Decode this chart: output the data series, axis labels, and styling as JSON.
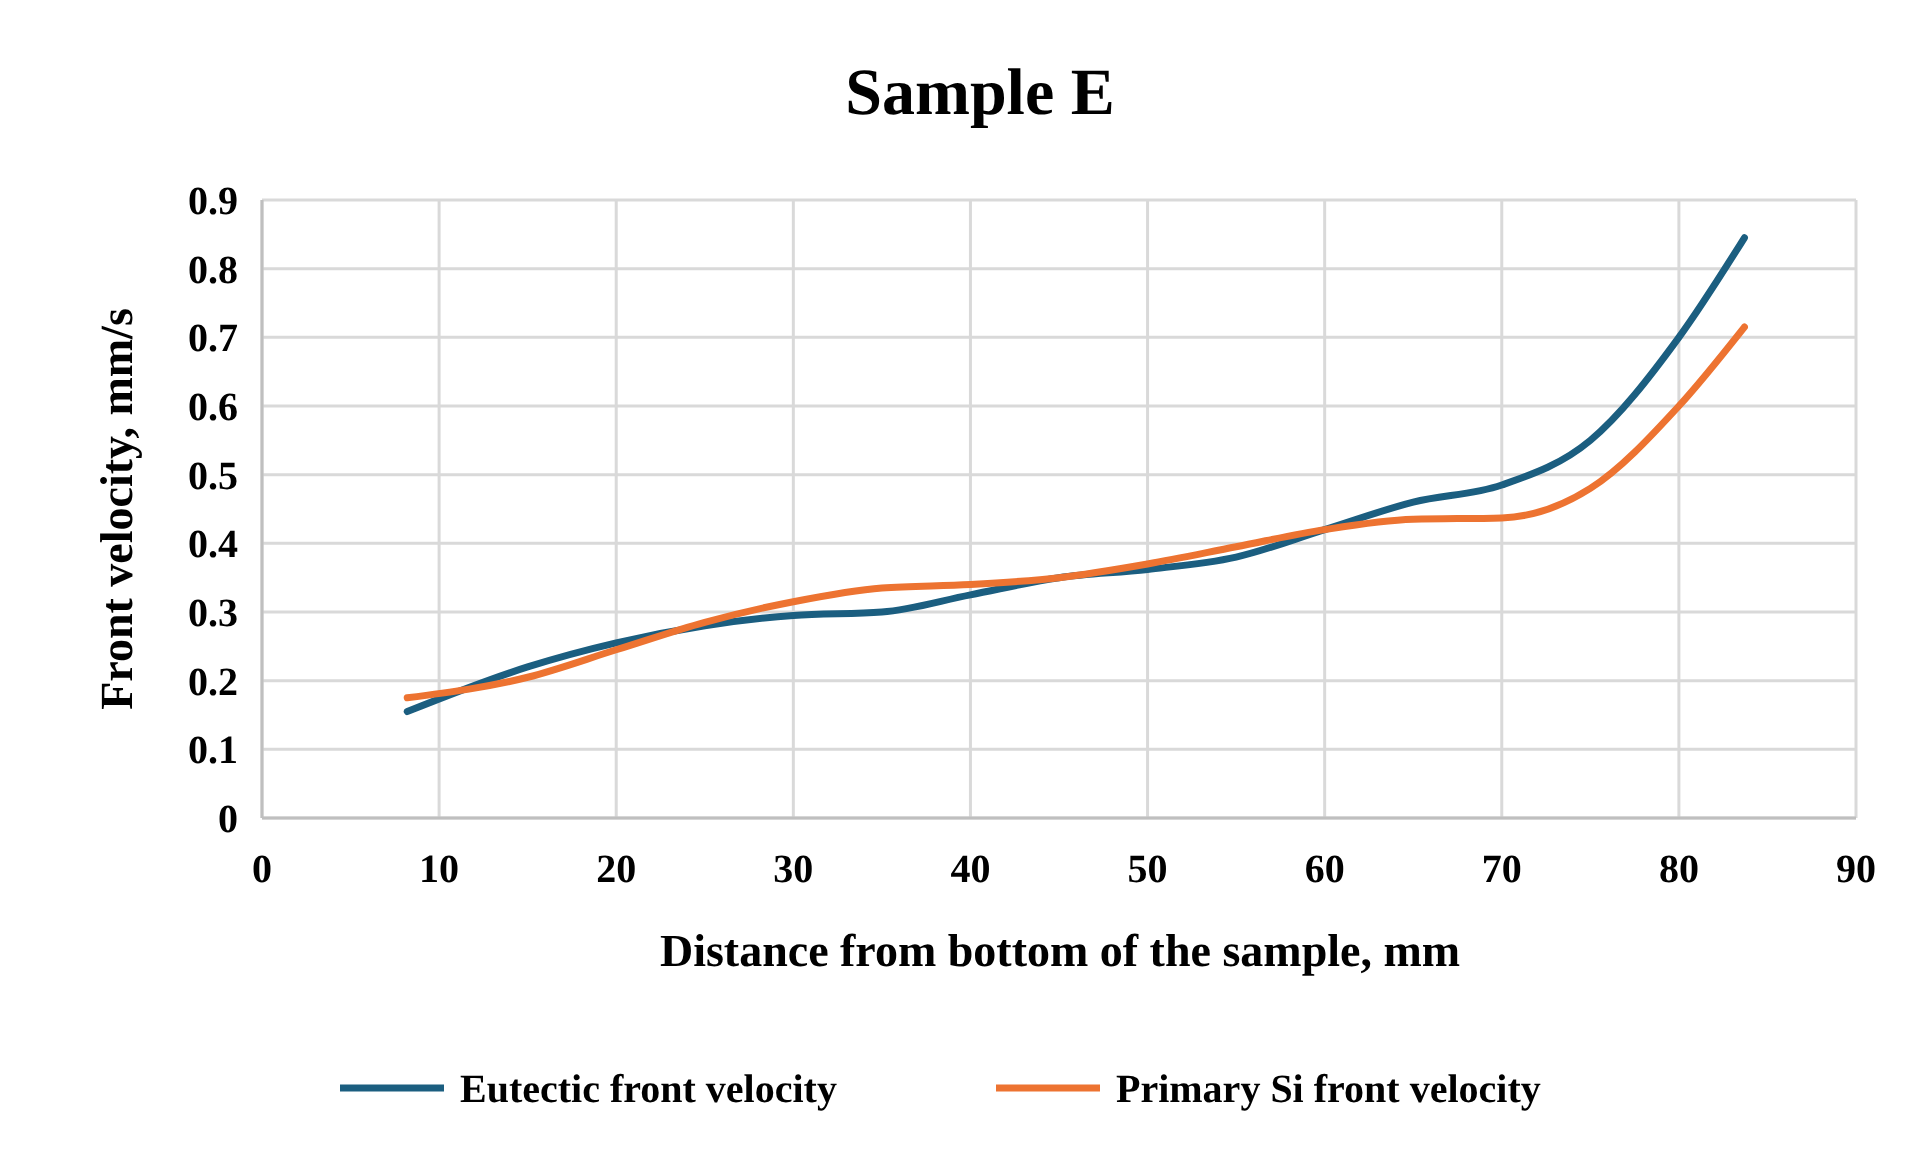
{
  "chart_data": {
    "type": "line",
    "title": "Sample E",
    "xlabel": "Distance from bottom of the sample, mm",
    "ylabel": "Front velocity, mm/s",
    "xlim": [
      0,
      90
    ],
    "xticks": [
      0,
      10,
      20,
      30,
      40,
      50,
      60,
      70,
      80,
      90
    ],
    "ylim": [
      0,
      0.9
    ],
    "yticks": [
      0,
      0.1,
      0.2,
      0.3,
      0.4,
      0.5,
      0.6,
      0.7,
      0.8,
      0.9
    ],
    "grid": true,
    "legend": "bottom",
    "marker": "none",
    "line_style": "solid",
    "series": [
      {
        "name": "Eutectic front velocity",
        "color": "#1b5e80",
        "x": [
          8.2,
          15,
          20,
          25,
          30,
          35,
          40,
          45,
          50,
          55,
          60,
          65,
          70,
          75,
          80,
          83.7
        ],
        "values": [
          0.155,
          0.22,
          0.255,
          0.28,
          0.295,
          0.3,
          0.325,
          0.35,
          0.362,
          0.38,
          0.42,
          0.46,
          0.485,
          0.55,
          0.7,
          0.845
        ]
      },
      {
        "name": "Primary Si front velocity",
        "color": "#ed7331",
        "x": [
          8.2,
          15,
          20,
          25,
          30,
          35,
          40,
          45,
          50,
          55,
          60,
          65,
          70,
          75,
          80,
          83.7
        ],
        "values": [
          0.175,
          0.205,
          0.245,
          0.285,
          0.315,
          0.335,
          0.34,
          0.35,
          0.37,
          0.395,
          0.42,
          0.435,
          0.437,
          0.48,
          0.6,
          0.715
        ]
      }
    ]
  }
}
